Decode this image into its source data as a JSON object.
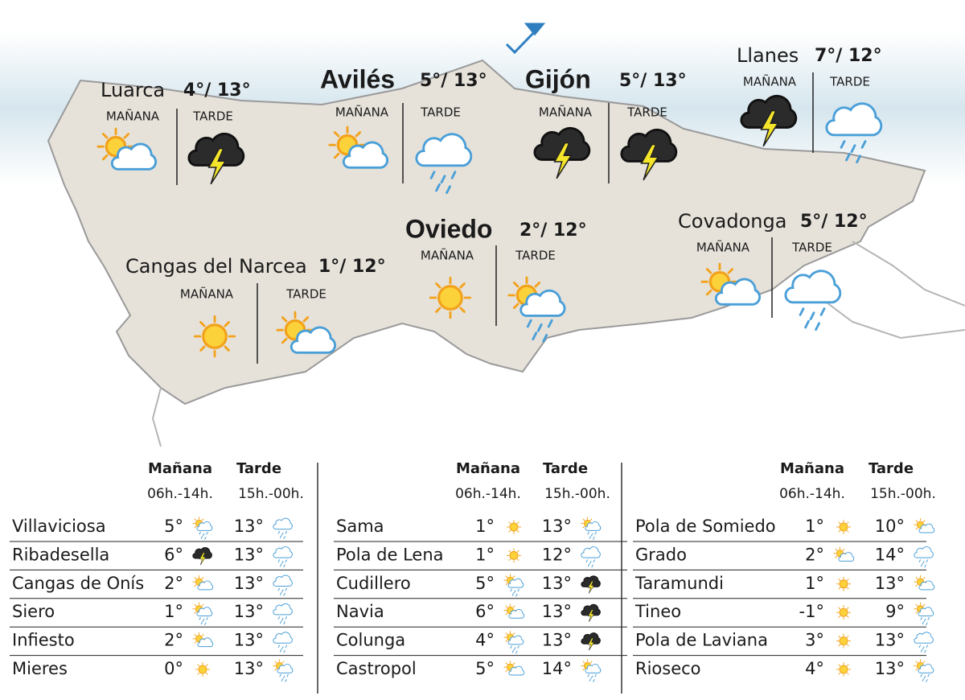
{
  "map": {
    "cities": [
      {
        "name": "Luarca",
        "temps": "4°/ 13°",
        "morning": "MAÑANA",
        "afternoon": "TARDE",
        "bold": false,
        "icons": [
          "sun-cloud",
          "storm"
        ]
      },
      {
        "name": "Avilés",
        "temps": "5°/ 13°",
        "morning": "MAÑANA",
        "afternoon": "TARDE",
        "bold": true,
        "icons": [
          "sun-cloud",
          "rain"
        ]
      },
      {
        "name": "Gijón",
        "temps": "5°/ 13°",
        "morning": "MAÑANA",
        "afternoon": "TARDE",
        "bold": true,
        "icons": [
          "storm",
          "storm"
        ]
      },
      {
        "name": "Llanes",
        "temps": "7°/ 12°",
        "morning": "MAÑANA",
        "afternoon": "TARDE",
        "bold": false,
        "icons": [
          "storm",
          "rain"
        ]
      },
      {
        "name": "Oviedo",
        "temps": "2°/ 12°",
        "morning": "MAÑANA",
        "afternoon": "TARDE",
        "bold": true,
        "icons": [
          "sun",
          "sun-rain"
        ]
      },
      {
        "name": "Covadonga",
        "temps": "5°/ 12°",
        "morning": "MAÑANA",
        "afternoon": "TARDE",
        "bold": false,
        "icons": [
          "sun-cloud",
          "rain"
        ]
      },
      {
        "name": "Cangas del Narcea",
        "temps": "1°/ 12°",
        "morning": "MAÑANA",
        "afternoon": "TARDE",
        "bold": false,
        "icons": [
          "sun",
          "sun-cloud"
        ]
      }
    ]
  },
  "table": {
    "columns": [
      {
        "header": {
          "morning": "Mañana",
          "afternoon": "Tarde",
          "morning_hours": "06h.-14h.",
          "afternoon_hours": "15h.-00h."
        },
        "rows": [
          {
            "name": "Villaviciosa",
            "morning": "5°",
            "afternoon": "13°",
            "icons": [
              "sun-rain",
              "rain"
            ]
          },
          {
            "name": "Ribadesella",
            "morning": "6°",
            "afternoon": "13°",
            "icons": [
              "storm",
              "rain"
            ]
          },
          {
            "name": "Cangas de Onís",
            "morning": "2°",
            "afternoon": "13°",
            "icons": [
              "sun-cloud",
              "rain"
            ]
          },
          {
            "name": "Siero",
            "morning": "1°",
            "afternoon": "13°",
            "icons": [
              "sun-rain",
              "rain"
            ]
          },
          {
            "name": "Infiesto",
            "morning": "2°",
            "afternoon": "13°",
            "icons": [
              "sun-cloud",
              "rain"
            ]
          },
          {
            "name": "Mieres",
            "morning": "0°",
            "afternoon": "13°",
            "icons": [
              "sun",
              "sun-rain"
            ]
          }
        ]
      },
      {
        "header": {
          "morning": "Mañana",
          "afternoon": "Tarde",
          "morning_hours": "06h.-14h.",
          "afternoon_hours": "15h.-00h."
        },
        "rows": [
          {
            "name": "Sama",
            "morning": "1°",
            "afternoon": "13°",
            "icons": [
              "sun",
              "sun-rain"
            ]
          },
          {
            "name": "Pola de Lena",
            "morning": "1°",
            "afternoon": "12°",
            "icons": [
              "sun",
              "rain"
            ]
          },
          {
            "name": "Cudillero",
            "morning": "5°",
            "afternoon": "13°",
            "icons": [
              "sun-rain",
              "storm"
            ]
          },
          {
            "name": "Navia",
            "morning": "6°",
            "afternoon": "13°",
            "icons": [
              "sun-cloud",
              "storm"
            ]
          },
          {
            "name": "Colunga",
            "morning": "4°",
            "afternoon": "13°",
            "icons": [
              "sun-rain",
              "storm"
            ]
          },
          {
            "name": "Castropol",
            "morning": "5°",
            "afternoon": "14°",
            "icons": [
              "sun-cloud",
              "sun-rain"
            ]
          }
        ]
      },
      {
        "header": {
          "morning": "Mañana",
          "afternoon": "Tarde",
          "morning_hours": "06h.-14h.",
          "afternoon_hours": "15h.-00h."
        },
        "rows": [
          {
            "name": "Pola de Somiedo",
            "morning": "1°",
            "afternoon": "10°",
            "icons": [
              "sun",
              "sun-cloud"
            ]
          },
          {
            "name": "Grado",
            "morning": "2°",
            "afternoon": "14°",
            "icons": [
              "sun-cloud",
              "rain"
            ]
          },
          {
            "name": "Taramundi",
            "morning": "1°",
            "afternoon": "13°",
            "icons": [
              "sun",
              "sun-cloud"
            ]
          },
          {
            "name": "Tineo",
            "morning": "-1°",
            "afternoon": "9°",
            "icons": [
              "sun",
              "sun-rain"
            ]
          },
          {
            "name": "Pola de Laviana",
            "morning": "3°",
            "afternoon": "13°",
            "icons": [
              "sun",
              "rain"
            ]
          },
          {
            "name": "Rioseco",
            "morning": "4°",
            "afternoon": "13°",
            "icons": [
              "sun",
              "sun-rain"
            ]
          }
        ]
      }
    ]
  }
}
